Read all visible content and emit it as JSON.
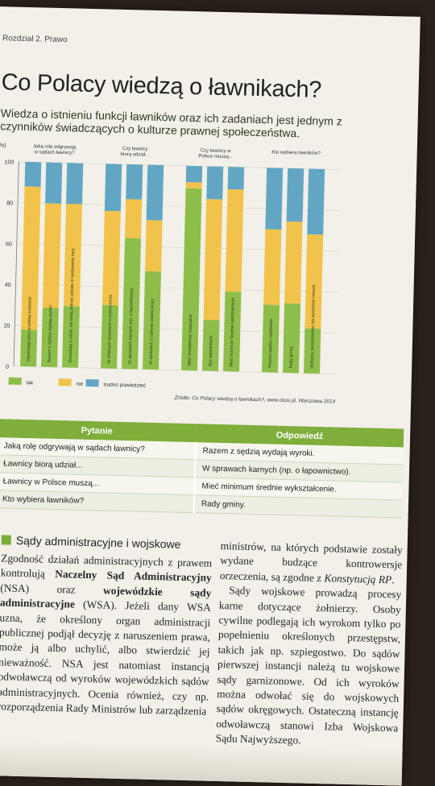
{
  "running_head": "Rozdział 2. Prawo",
  "title": "Co Polacy wiedzą o ławnikach?",
  "lead": "Wiedza o istnieniu funkcji ławników oraz ich zadaniach jest jednym z czynników świadczących o kulturze prawnej społeczeństwa.",
  "colors": {
    "tak": "#8ebe4a",
    "nie": "#f2c34a",
    "trudno": "#63a6c4",
    "accent": "#7fae3b"
  },
  "chart_data": {
    "type": "bar",
    "stacked": true,
    "ylabel": "[%]",
    "ylim": [
      0,
      100
    ],
    "yticks": [
      0,
      20,
      40,
      60,
      80,
      100
    ],
    "groups": [
      {
        "title": "Jaką rolę odgrywają w sądach ławnicy?",
        "start": 0,
        "count": 3
      },
      {
        "title": "Czy ławnicy biorą udział...",
        "start": 3,
        "count": 3
      },
      {
        "title": "Czy ławnicy w Polsce muszą...",
        "start": 6,
        "count": 3
      },
      {
        "title": "Kto wybiera ławników?",
        "start": 9,
        "count": 3
      }
    ],
    "categories": [
      "Obserwują tylko przebieg rozprawy",
      "Razem z sędzią wydają wyroki",
      "Doradzają o winie, nie biorą jednak udziału w wydawaniu kary",
      "W drobnych sprawach o wykroczenia",
      "W sprawach karnych (np. o łapownictwo)",
      "W sprawach z zakresu prawa pracy",
      "Mieć świadectwo maturalne",
      "Być adwokatami",
      "Mieć minimum średnie wykształcenie",
      "Prezesi sądów i sędziowie",
      "Rady gminy",
      "Wyborcy, bezpośrednio lub pośrednio mieszk."
    ],
    "series": [
      {
        "name": "tak",
        "values": [
          18,
          29,
          30,
          31,
          64,
          48,
          89,
          25,
          39,
          33,
          34,
          22
        ]
      },
      {
        "name": "nie",
        "values": [
          70,
          51,
          50,
          46,
          19,
          25,
          3,
          59,
          50,
          37,
          40,
          46
        ]
      },
      {
        "name": "trudno powiedzieć",
        "values": [
          12,
          20,
          20,
          23,
          17,
          27,
          8,
          16,
          11,
          30,
          26,
          32
        ]
      }
    ],
    "legend": [
      "tak",
      "nie",
      "trudno powiedzieć"
    ],
    "source": "Źródło: Co Polacy wiedzą o ławnikach?, www.cbos.pl, Warszawa 2014"
  },
  "table": {
    "headers": [
      "Pytanie",
      "Odpowiedź"
    ],
    "rows": [
      [
        "Jaką rolę odgrywają w sądach ławnicy?",
        "Razem z sędzią wydają wyroki."
      ],
      [
        "Ławnicy biorą udział...",
        "W sprawach karnych (np. o łapownictwo)."
      ],
      [
        "Ławnicy w Polsce muszą...",
        "Mieć minimum średnie wykształcenie."
      ],
      [
        "Kto wybiera ławników?",
        "Rady gminy."
      ]
    ]
  },
  "section": {
    "heading": "Sądy administracyjne i wojskowe",
    "left": {
      "t1": "Zgodność działań administracyjnych z prawem kontrolują ",
      "b1": "Naczelny Sąd Administracyjny",
      "t2": " (NSA) oraz ",
      "b2": "wojewódzkie sądy administracyjne",
      "t3": " (WSA). Jeżeli dany WSA uzna, że określony organ administracji publicznej podjął decyzję z naruszeniem prawa, może ją albo uchylić, albo stwierdzić jej nieważność. NSA jest natomiast instancją odwoławczą od wyroków wojewódzkich sądów administracyjnych. Ocenia również, czy np. rozporządzenia Rady Ministrów lub zarządzenia"
    },
    "right": {
      "t1": "ministrów, na których podstawie zostały wydane budzące kontrowersje orzeczenia, są zgodne z ",
      "i1": "Konstytucją RP",
      "t2": ".",
      "p2": "Sądy wojskowe prowadzą procesy karne dotyczące żołnierzy. Osoby cywilne podlegają ich wyrokom tylko po popełnieniu określonych przestępstw, takich jak np. szpiegostwo. Do sądów pierwszej instancji należą tu wojskowe sądy garnizonowe. Od ich wyroków można odwołać się do wojskowych sądów okręgowych. Ostateczną instancję odwoławczą stanowi Izba Wojskowa Sądu Najwyższego."
    }
  }
}
